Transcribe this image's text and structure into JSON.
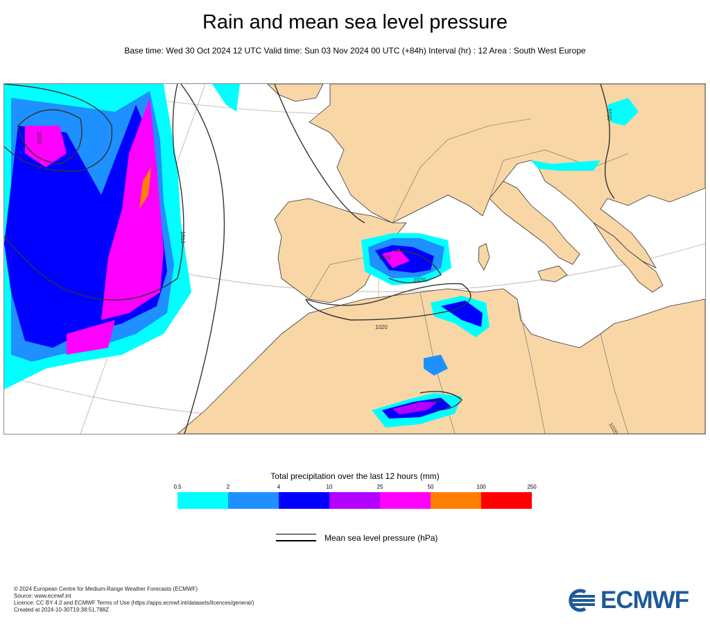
{
  "title": "Rain and mean sea level pressure",
  "subtitle": "Base time: Wed 30 Oct 2024 12 UTC Valid time: Sun 03 Nov 2024 00 UTC (+84h) Interval (hr) : 12 Area : South West Europe",
  "map": {
    "colors": {
      "land": "#f8d6a6",
      "sea": "#ffffff",
      "isobar": "#333333",
      "border": "#555555",
      "graticule": "#bfae98"
    },
    "isobar_labels": [
      "1000",
      "1010",
      "1020",
      "1020",
      "1020",
      "1020",
      "1020",
      "1020"
    ]
  },
  "legend": {
    "title": "Total precipitation over the last 12 hours (mm)",
    "ticks": [
      "0.5",
      "2",
      "4",
      "10",
      "25",
      "50",
      "100",
      "250"
    ],
    "colors": [
      "#00ffff",
      "#1e90ff",
      "#0000ff",
      "#b300ff",
      "#ff00ff",
      "#ff8000",
      "#ff0000"
    ],
    "isobar_label": "Mean sea level pressure (hPa)"
  },
  "credits": [
    "© 2024 European Centre for Medium-Range Weather Forecasts (ECMWF)",
    "Source: www.ecmwf.int",
    "Licence: CC BY 4.0 and ECMWF Terms of Use (https://apps.ecmwf.int/datasets/licences/general/)",
    "Created at 2024-10-30T19:38:51.788Z"
  ],
  "logo": {
    "text": "ECMWF",
    "color": "#1e5a96"
  }
}
